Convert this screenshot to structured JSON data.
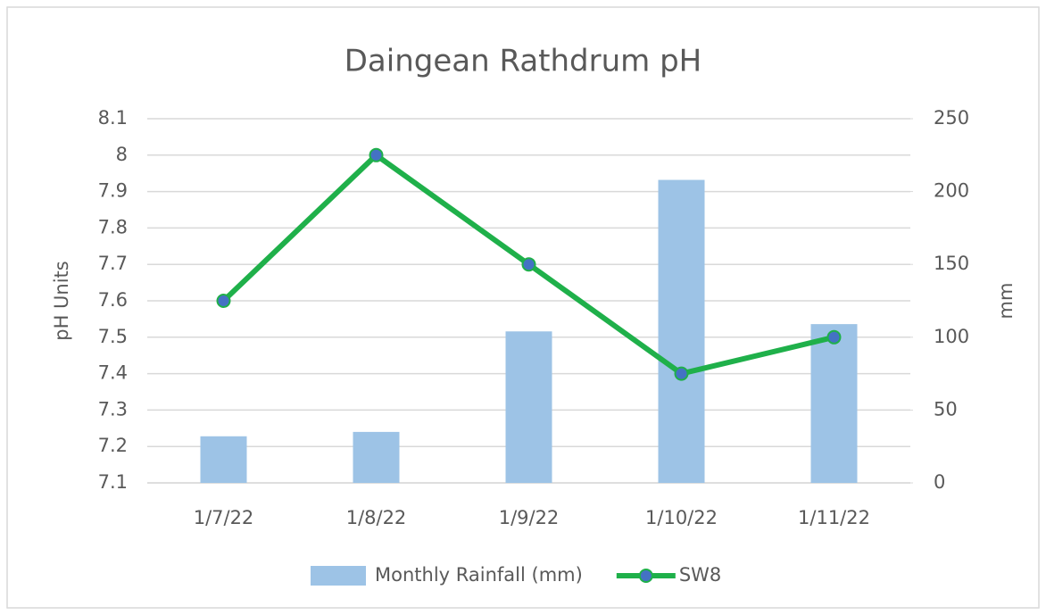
{
  "chart_data": {
    "type": "combo",
    "title": "Daingean Rathdrum pH",
    "categories": [
      "1/7/22",
      "1/8/22",
      "1/9/22",
      "1/10/22",
      "1/11/22"
    ],
    "series": [
      {
        "name": "Monthly Rainfall (mm)",
        "type": "bar",
        "axis": "y2",
        "color": "#9dc3e6",
        "values": [
          32,
          35,
          104,
          208,
          109
        ]
      },
      {
        "name": "SW8",
        "type": "line",
        "color": "#1fb04a",
        "marker_color": "#4472c4",
        "values": [
          7.6,
          8.0,
          7.7,
          7.4,
          7.5
        ]
      }
    ],
    "ylabel": "pH Units",
    "y2label": "mm",
    "ylim": [
      7.1,
      8.1
    ],
    "yticks": [
      7.1,
      7.2,
      7.3,
      7.4,
      7.5,
      7.6,
      7.7,
      7.8,
      7.9,
      8,
      8.1
    ],
    "y2lim": [
      0,
      250
    ],
    "y2ticks": [
      0,
      50,
      100,
      150,
      200,
      250
    ],
    "grid": true,
    "legend": "bottom"
  }
}
